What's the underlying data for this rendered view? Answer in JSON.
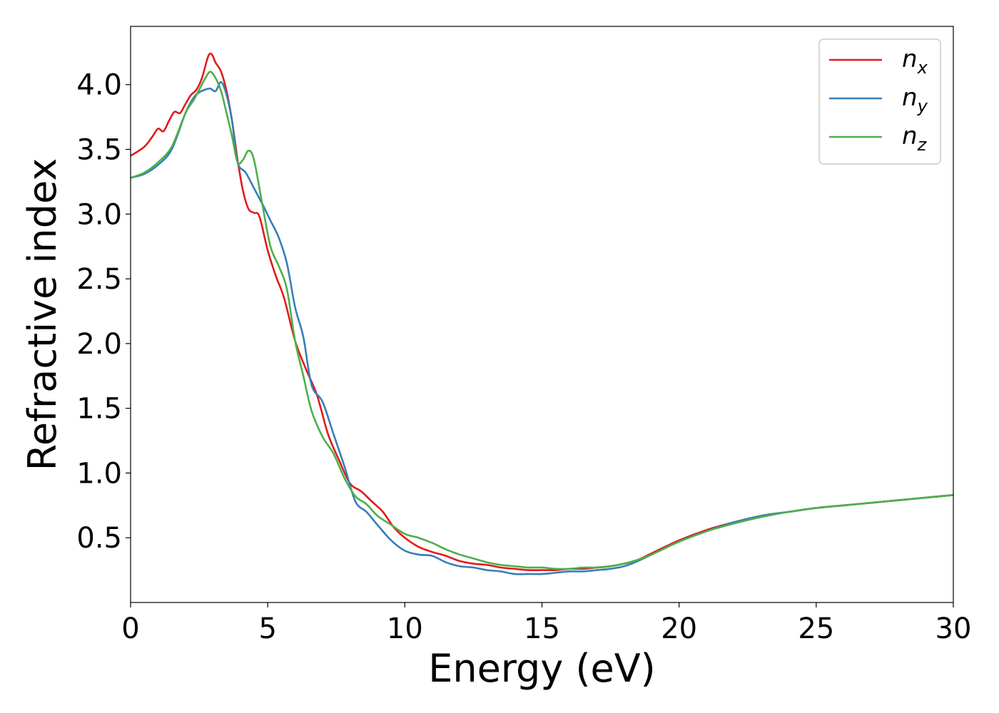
{
  "chart_data": {
    "type": "line",
    "title": "",
    "xlabel": "Energy (eV)",
    "ylabel": "Refractive index",
    "xlim": [
      0,
      30
    ],
    "ylim": [
      0,
      4.45
    ],
    "xticks": [
      0,
      5,
      10,
      15,
      20,
      25,
      30
    ],
    "xtick_labels": [
      "0",
      "5",
      "10",
      "15",
      "20",
      "25",
      "30"
    ],
    "yticks": [
      0.5,
      1.0,
      1.5,
      2.0,
      2.5,
      3.0,
      3.5,
      4.0
    ],
    "ytick_labels": [
      "0.5",
      "1.0",
      "1.5",
      "2.0",
      "2.5",
      "3.0",
      "3.5",
      "4.0"
    ],
    "grid": false,
    "legend_position": "top-right",
    "series": [
      {
        "name": "n_x",
        "label_base": "n",
        "label_sub": "x",
        "color": "#e41a1c",
        "x": [
          0,
          0.5,
          0.8,
          1.0,
          1.2,
          1.4,
          1.6,
          1.8,
          2.0,
          2.2,
          2.4,
          2.6,
          2.8,
          2.9,
          3.0,
          3.1,
          3.3,
          3.5,
          3.7,
          3.9,
          4.1,
          4.3,
          4.5,
          4.7,
          5.0,
          5.3,
          5.6,
          6.0,
          6.4,
          6.8,
          7.2,
          7.6,
          8.0,
          8.4,
          8.8,
          9.2,
          9.6,
          10.0,
          10.5,
          11.0,
          11.5,
          12.0,
          12.5,
          13.0,
          13.5,
          14.0,
          14.5,
          15.0,
          15.5,
          16.0,
          16.5,
          17.0,
          17.5,
          18.0,
          18.5,
          19.0,
          20.0,
          21.0,
          22.0,
          23.0,
          24.0,
          25.0,
          26.0,
          27.0,
          28.0,
          29.0,
          30.0
        ],
        "y": [
          3.45,
          3.52,
          3.6,
          3.66,
          3.64,
          3.72,
          3.79,
          3.78,
          3.85,
          3.92,
          3.96,
          4.05,
          4.2,
          4.24,
          4.22,
          4.17,
          4.1,
          3.95,
          3.72,
          3.42,
          3.18,
          3.04,
          3.01,
          2.98,
          2.72,
          2.52,
          2.35,
          2.02,
          1.8,
          1.6,
          1.3,
          1.1,
          0.92,
          0.86,
          0.78,
          0.7,
          0.58,
          0.5,
          0.43,
          0.39,
          0.36,
          0.32,
          0.3,
          0.29,
          0.27,
          0.26,
          0.25,
          0.25,
          0.25,
          0.26,
          0.26,
          0.27,
          0.28,
          0.3,
          0.33,
          0.38,
          0.48,
          0.56,
          0.62,
          0.67,
          0.7,
          0.73,
          0.75,
          0.77,
          0.79,
          0.81,
          0.83
        ]
      },
      {
        "name": "n_y",
        "label_base": "n",
        "label_sub": "y",
        "color": "#377eb8",
        "x": [
          0,
          0.5,
          1.0,
          1.5,
          2.0,
          2.3,
          2.5,
          2.7,
          2.9,
          3.1,
          3.3,
          3.5,
          3.7,
          3.9,
          4.2,
          4.5,
          4.8,
          5.1,
          5.4,
          5.7,
          6.0,
          6.3,
          6.6,
          7.0,
          7.4,
          7.8,
          8.2,
          8.6,
          9.0,
          9.5,
          10.0,
          10.5,
          11.0,
          11.5,
          12.0,
          12.5,
          13.0,
          13.5,
          14.0,
          14.5,
          15.0,
          15.5,
          16.0,
          16.5,
          17.0,
          17.5,
          18.0,
          18.5,
          19.0,
          20.0,
          21.0,
          22.0,
          23.0,
          24.0,
          25.0,
          26.0,
          27.0,
          28.0,
          29.0,
          30.0
        ],
        "y": [
          3.28,
          3.31,
          3.38,
          3.5,
          3.78,
          3.9,
          3.94,
          3.96,
          3.97,
          3.95,
          4.02,
          3.92,
          3.72,
          3.4,
          3.32,
          3.2,
          3.08,
          2.95,
          2.82,
          2.62,
          2.28,
          2.05,
          1.68,
          1.55,
          1.3,
          1.05,
          0.78,
          0.7,
          0.6,
          0.48,
          0.4,
          0.37,
          0.36,
          0.31,
          0.28,
          0.27,
          0.25,
          0.24,
          0.22,
          0.22,
          0.22,
          0.23,
          0.24,
          0.24,
          0.25,
          0.26,
          0.28,
          0.32,
          0.37,
          0.47,
          0.55,
          0.62,
          0.67,
          0.7,
          0.73,
          0.75,
          0.77,
          0.79,
          0.81,
          0.83
        ]
      },
      {
        "name": "n_z",
        "label_base": "n",
        "label_sub": "z",
        "color": "#4daf4a",
        "x": [
          0,
          0.5,
          1.0,
          1.5,
          2.0,
          2.3,
          2.5,
          2.7,
          2.9,
          3.1,
          3.3,
          3.5,
          3.7,
          3.9,
          4.1,
          4.3,
          4.5,
          4.8,
          5.1,
          5.4,
          5.7,
          6.0,
          6.3,
          6.6,
          7.0,
          7.4,
          7.8,
          8.2,
          8.6,
          9.0,
          9.5,
          10.0,
          10.5,
          11.0,
          11.5,
          12.0,
          12.5,
          13.0,
          13.5,
          14.0,
          14.5,
          15.0,
          15.5,
          16.0,
          16.5,
          17.0,
          17.5,
          18.0,
          18.5,
          19.0,
          20.0,
          21.0,
          22.0,
          23.0,
          24.0,
          25.0,
          26.0,
          27.0,
          28.0,
          29.0,
          30.0
        ],
        "y": [
          3.28,
          3.32,
          3.4,
          3.52,
          3.78,
          3.88,
          3.96,
          4.04,
          4.1,
          4.05,
          3.95,
          3.78,
          3.6,
          3.4,
          3.42,
          3.49,
          3.42,
          3.08,
          2.75,
          2.6,
          2.42,
          2.02,
          1.75,
          1.48,
          1.28,
          1.15,
          0.96,
          0.82,
          0.76,
          0.67,
          0.6,
          0.53,
          0.5,
          0.46,
          0.41,
          0.37,
          0.34,
          0.31,
          0.29,
          0.28,
          0.27,
          0.27,
          0.26,
          0.26,
          0.27,
          0.27,
          0.28,
          0.3,
          0.33,
          0.37,
          0.47,
          0.55,
          0.61,
          0.66,
          0.7,
          0.73,
          0.75,
          0.77,
          0.79,
          0.81,
          0.83
        ]
      }
    ]
  }
}
